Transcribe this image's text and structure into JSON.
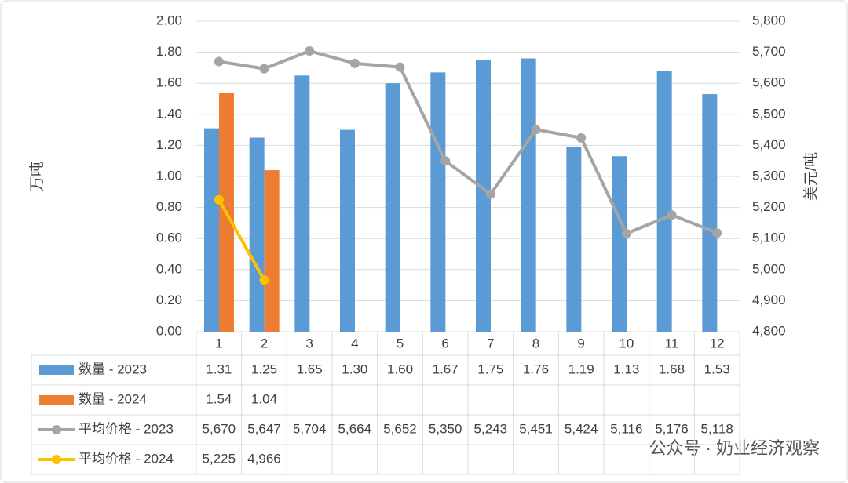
{
  "chart_data": {
    "type": "bar",
    "categories": [
      "1",
      "2",
      "3",
      "4",
      "5",
      "6",
      "7",
      "8",
      "9",
      "10",
      "11",
      "12"
    ],
    "ylabel": "万吨",
    "y2label": "美元/吨",
    "ylim": [
      0,
      2
    ],
    "yticks": [
      {
        "value": 0,
        "label": "0.00"
      },
      {
        "value": 0.2,
        "label": "0.20"
      },
      {
        "value": 0.4,
        "label": "0.40"
      },
      {
        "value": 0.6,
        "label": "0.60"
      },
      {
        "value": 0.8,
        "label": "0.80"
      },
      {
        "value": 1,
        "label": "1.00"
      },
      {
        "value": 1.2,
        "label": "1.20"
      },
      {
        "value": 1.4,
        "label": "1.40"
      },
      {
        "value": 1.6,
        "label": "1.60"
      },
      {
        "value": 1.8,
        "label": "1.80"
      },
      {
        "value": 2,
        "label": "2.00"
      }
    ],
    "y2lim": [
      4800,
      5800
    ],
    "y2ticks": [
      {
        "value": 4800,
        "label": "4,800"
      },
      {
        "value": 4900,
        "label": "4,900"
      },
      {
        "value": 5000,
        "label": "5,000"
      },
      {
        "value": 5100,
        "label": "5,100"
      },
      {
        "value": 5200,
        "label": "5,200"
      },
      {
        "value": 5300,
        "label": "5,300"
      },
      {
        "value": 5400,
        "label": "5,400"
      },
      {
        "value": 5500,
        "label": "5,500"
      },
      {
        "value": 5600,
        "label": "5,600"
      },
      {
        "value": 5700,
        "label": "5,700"
      },
      {
        "value": 5800,
        "label": "5,800"
      }
    ],
    "grid": true,
    "series": [
      {
        "name": "数量 - 2023",
        "type": "bar",
        "color": "#5b9bd5",
        "values": [
          1.31,
          1.25,
          1.65,
          1.3,
          1.6,
          1.67,
          1.75,
          1.76,
          1.19,
          1.13,
          1.68,
          1.53
        ],
        "value_labels": [
          "1.31",
          "1.25",
          "1.65",
          "1.30",
          "1.60",
          "1.67",
          "1.75",
          "1.76",
          "1.19",
          "1.13",
          "1.68",
          "1.53"
        ]
      },
      {
        "name": "数量 - 2024",
        "type": "bar",
        "color": "#ed7d31",
        "values": [
          1.54,
          1.04,
          null,
          null,
          null,
          null,
          null,
          null,
          null,
          null,
          null,
          null
        ],
        "value_labels": [
          "1.54",
          "1.04",
          null,
          null,
          null,
          null,
          null,
          null,
          null,
          null,
          null,
          null
        ]
      },
      {
        "name": "平均价格 - 2023",
        "type": "line",
        "axis": "y2",
        "color": "#a5a5a5",
        "values": [
          5670,
          5647,
          5704,
          5664,
          5652,
          5350,
          5243,
          5451,
          5424,
          5116,
          5176,
          5118
        ],
        "value_labels": [
          "5,670",
          "5,647",
          "5,704",
          "5,664",
          "5,652",
          "5,350",
          "5,243",
          "5,451",
          "5,424",
          "5,116",
          "5,176",
          "5,118"
        ]
      },
      {
        "name": "平均价格 - 2024",
        "type": "line",
        "axis": "y2",
        "color": "#ffc000",
        "values": [
          5225,
          4966,
          null,
          null,
          null,
          null,
          null,
          null,
          null,
          null,
          null,
          null
        ],
        "value_labels": [
          "5,225",
          "4,966",
          null,
          null,
          null,
          null,
          null,
          null,
          null,
          null,
          null,
          null
        ]
      }
    ],
    "watermark": "公众号 · 奶业经济观察"
  }
}
